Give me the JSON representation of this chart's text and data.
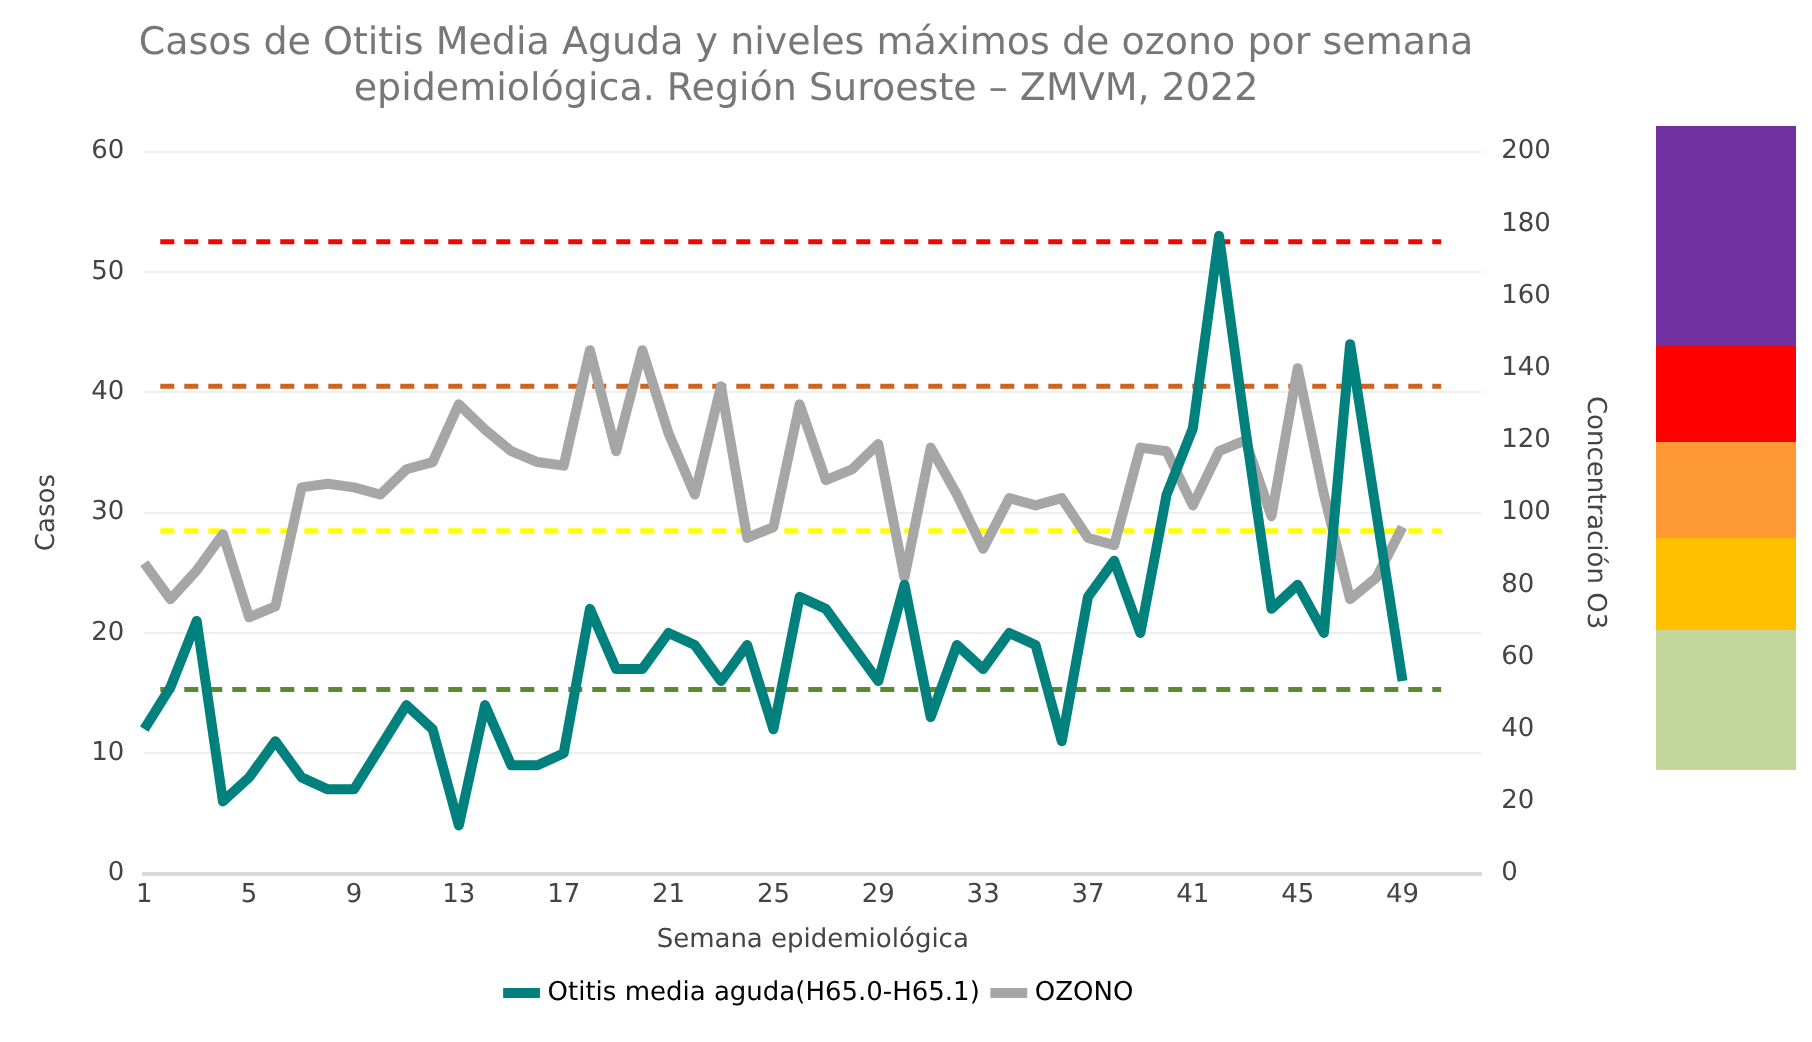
{
  "chart_data": {
    "type": "line",
    "title": "Casos de Otitis Media Aguda y niveles máximos de ozono por semana epidemiológica. Región Suroeste – ZMVM, 2022",
    "xlabel": "Semana epidemiológica",
    "ylabel": "Casos",
    "y2label": "Concentración O3",
    "categories": [
      "1",
      null,
      null,
      null,
      "5",
      null,
      null,
      null,
      "9",
      null,
      null,
      null,
      "13",
      null,
      null,
      null,
      "17",
      null,
      null,
      null,
      "21",
      null,
      null,
      null,
      "25",
      null,
      null,
      null,
      "29",
      null,
      null,
      null,
      "33",
      null,
      null,
      null,
      "37",
      null,
      null,
      null,
      "41",
      null,
      null,
      null,
      "45",
      null,
      null,
      null,
      "49",
      null,
      null,
      null
    ],
    "series": [
      {
        "name": "Otitis media aguda(H65.0-H65.1)",
        "color": "#00817e",
        "values": [
          12,
          15.5,
          21,
          6,
          8,
          11,
          8,
          7,
          7,
          10.5,
          14,
          12,
          4,
          14,
          9,
          9,
          10,
          22,
          17,
          17,
          20,
          19,
          16,
          19,
          12,
          23,
          22,
          19,
          16,
          24,
          13,
          19,
          17,
          20,
          19,
          11,
          23,
          26,
          20,
          31.5,
          37,
          53,
          37,
          22,
          24,
          20,
          44,
          30,
          16,
          null,
          null,
          null
        ]
      },
      {
        "name": "OZONO",
        "color": "#a6a6a6",
        "axis": "y2",
        "values": [
          86,
          76,
          84,
          94,
          71,
          74,
          107,
          108,
          107,
          105,
          112,
          114,
          130,
          123,
          117,
          114,
          113,
          145,
          117,
          145,
          122,
          105,
          135,
          93,
          96,
          130,
          109,
          112,
          119,
          82,
          118,
          105,
          90,
          104,
          102,
          104,
          93,
          91,
          118,
          117,
          102,
          117,
          120,
          99,
          140,
          105,
          76,
          82,
          96,
          null,
          null,
          null
        ]
      }
    ],
    "ylim": [
      0,
      60
    ],
    "yticks": [
      0,
      10,
      20,
      30,
      40,
      50,
      60
    ],
    "y2lim": [
      0,
      200
    ],
    "y2ticks": [
      0,
      20,
      40,
      60,
      80,
      100,
      120,
      140,
      160,
      180,
      200
    ],
    "ref_lines": [
      {
        "axis": "y",
        "value": 52.5,
        "color": "#ff0000",
        "line_style": "dashed"
      },
      {
        "axis": "y",
        "value": 40.5,
        "color": "#d0631f",
        "line_style": "dashed"
      },
      {
        "axis": "y",
        "value": 28.5,
        "color": "#ffff00",
        "line_style": "dashed"
      },
      {
        "axis": "y",
        "value": 15.3,
        "color": "#5b8a2e",
        "line_style": "dashed"
      }
    ],
    "grid": "y",
    "legend": "bottom",
    "marker": "none",
    "line_style": "solid"
  }
}
